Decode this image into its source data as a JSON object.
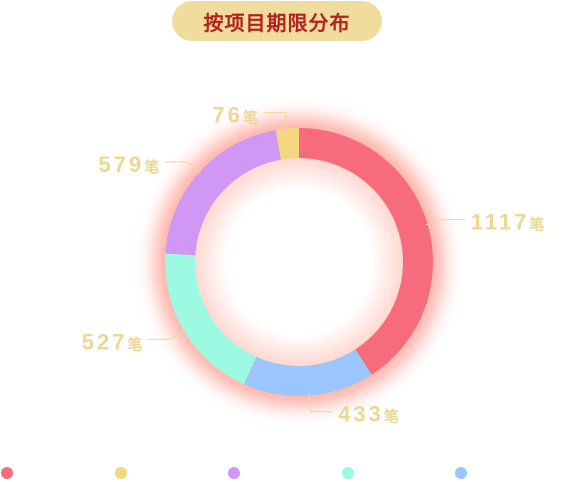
{
  "title": "按项目期限分布",
  "chart_data": {
    "type": "pie",
    "variant": "donut",
    "unit": "笔",
    "slices": [
      {
        "name": "",
        "value": 1117,
        "color": "#f66c7d"
      },
      {
        "name": "",
        "value": 433,
        "color": "#9ac6fd"
      },
      {
        "name": "",
        "value": 527,
        "color": "#9cfae3"
      },
      {
        "name": "",
        "value": 579,
        "color": "#d097f5"
      },
      {
        "name": "",
        "value": 76,
        "color": "#f3d680"
      }
    ],
    "label_color": "#ecd795",
    "leader_color": "#ecd795",
    "glow_color": "#ff6e5c",
    "legend": {
      "placement": "bottom"
    }
  }
}
